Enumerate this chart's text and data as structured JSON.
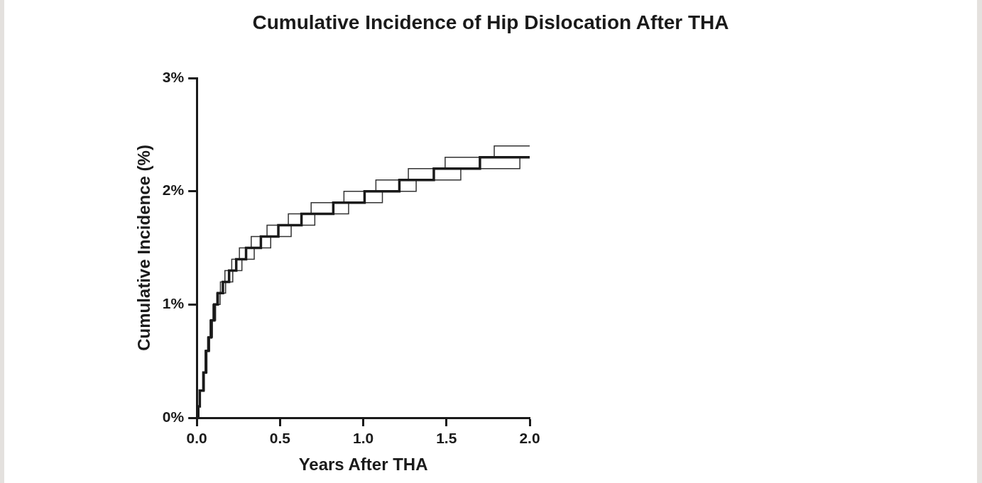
{
  "chart_data": {
    "type": "step",
    "title": "Cumulative Incidence of Hip Dislocation After THA",
    "xlabel": "Years After THA",
    "ylabel": "Cumulative Incidence (%)",
    "xlim": [
      0,
      2
    ],
    "xticks": [
      {
        "value": 0,
        "label": "0.0"
      },
      {
        "value": 0.5,
        "label": "0.5"
      },
      {
        "value": 1,
        "label": "1.0"
      },
      {
        "value": 1.5,
        "label": "1.5"
      },
      {
        "value": 2,
        "label": "2.0"
      }
    ],
    "ylim": [
      0,
      3
    ],
    "yticks": [
      {
        "value": 0,
        "label": "0%"
      },
      {
        "value": 1,
        "label": "1%"
      },
      {
        "value": 2,
        "label": "2%"
      },
      {
        "value": 3,
        "label": "3%"
      }
    ],
    "grid": false,
    "legend": false,
    "marker": "none",
    "line_style": "solid",
    "series": [
      {
        "color": "#1a1a1a",
        "x": [
          0,
          0.009,
          0.018,
          0.04,
          0.055,
          0.071,
          0.086,
          0.105,
          0.126,
          0.157,
          0.194,
          0.237,
          0.296,
          0.385,
          0.49,
          0.629,
          0.82,
          1.008,
          1.217,
          1.424,
          1.701,
          2.0
        ],
        "values": [
          0,
          0.1,
          0.24,
          0.4,
          0.59,
          0.71,
          0.86,
          1.0,
          1.1,
          1.2,
          1.3,
          1.4,
          1.5,
          1.6,
          1.7,
          1.8,
          1.9,
          2.0,
          2.1,
          2.2,
          2.3,
          2.3
        ]
      },
      {
        "color": "#333333",
        "x": [
          0,
          0.008,
          0.016,
          0.036,
          0.05,
          0.065,
          0.08,
          0.097,
          0.12,
          0.142,
          0.169,
          0.21,
          0.256,
          0.327,
          0.422,
          0.55,
          0.687,
          0.884,
          1.076,
          1.271,
          1.492,
          1.787,
          2.0
        ],
        "values": [
          0,
          0.1,
          0.24,
          0.4,
          0.59,
          0.71,
          0.86,
          1.0,
          1.1,
          1.2,
          1.3,
          1.4,
          1.5,
          1.6,
          1.7,
          1.8,
          1.9,
          2.0,
          2.1,
          2.2,
          2.3,
          2.4,
          2.4
        ]
      },
      {
        "color": "#333333",
        "x": [
          0,
          0.011,
          0.021,
          0.045,
          0.061,
          0.077,
          0.094,
          0.113,
          0.14,
          0.173,
          0.216,
          0.271,
          0.345,
          0.444,
          0.567,
          0.709,
          0.912,
          1.115,
          1.318,
          1.586,
          1.941,
          2.0
        ],
        "values": [
          0,
          0.1,
          0.24,
          0.4,
          0.59,
          0.71,
          0.86,
          1.0,
          1.1,
          1.2,
          1.3,
          1.4,
          1.5,
          1.6,
          1.7,
          1.8,
          1.9,
          2.0,
          2.1,
          2.2,
          2.3,
          2.3
        ]
      }
    ]
  }
}
